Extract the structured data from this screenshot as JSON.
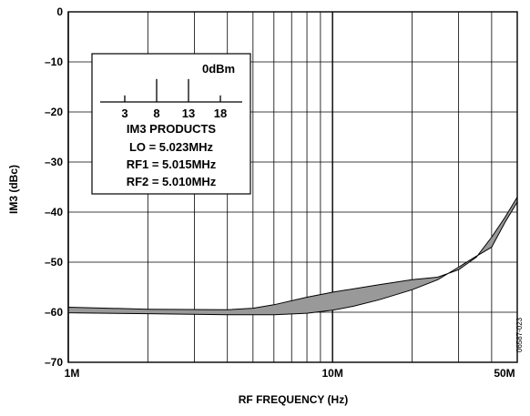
{
  "chart_data": {
    "type": "area",
    "title": "",
    "xlabel": "RF FREQUENCY (Hz)",
    "ylabel": "IM3 (dBc)",
    "xscale": "log",
    "x_range_hz": [
      1000000,
      50000000
    ],
    "ylim": [
      -70,
      0
    ],
    "grid": true,
    "x_ticks": [
      {
        "value": 1000000,
        "label": "1M"
      },
      {
        "value": 10000000,
        "label": "10M"
      },
      {
        "value": 50000000,
        "label": "50M"
      }
    ],
    "y_ticks": [
      {
        "value": 0,
        "label": "0"
      },
      {
        "value": -10,
        "label": "–10"
      },
      {
        "value": -20,
        "label": "–20"
      },
      {
        "value": -30,
        "label": "–30"
      },
      {
        "value": -40,
        "label": "–40"
      },
      {
        "value": -50,
        "label": "–50"
      },
      {
        "value": -60,
        "label": "–60"
      },
      {
        "value": -70,
        "label": "–70"
      }
    ],
    "fill_color": "#999999",
    "series": [
      {
        "role": "upper",
        "x": [
          1000000,
          2000000,
          4000000,
          5000000,
          6000000,
          8000000,
          10000000,
          15000000,
          20000000,
          25000000,
          30000000,
          35000000,
          40000000,
          45000000,
          50000000
        ],
        "y": [
          -59.0,
          -59.4,
          -59.5,
          -59.2,
          -58.5,
          -57.0,
          -56.0,
          -54.5,
          -53.5,
          -53.0,
          -51.5,
          -49.0,
          -45.0,
          -41.0,
          -37.0
        ]
      },
      {
        "role": "lower",
        "x": [
          1000000,
          2000000,
          4000000,
          6000000,
          8000000,
          10000000,
          12000000,
          15000000,
          20000000,
          25000000,
          30000000,
          35000000,
          40000000,
          45000000,
          50000000
        ],
        "y": [
          -60.1,
          -60.3,
          -60.5,
          -60.5,
          -60.2,
          -59.6,
          -58.8,
          -57.5,
          -55.5,
          -53.5,
          -51.0,
          -48.8,
          -47.0,
          -42.0,
          -38.0
        ]
      }
    ],
    "legend": {
      "product_labels": [
        "3",
        "8",
        "13",
        "18"
      ],
      "product_heights_dBc": [
        -8,
        -3,
        -3,
        -8
      ],
      "level_label": "0dBm",
      "caption": "IM3 PRODUCTS",
      "lines": [
        "LO = 5.023MHz",
        "RF1 = 5.015MHz",
        "RF2 = 5.010MHz"
      ]
    },
    "figure_id": "06587-023"
  }
}
